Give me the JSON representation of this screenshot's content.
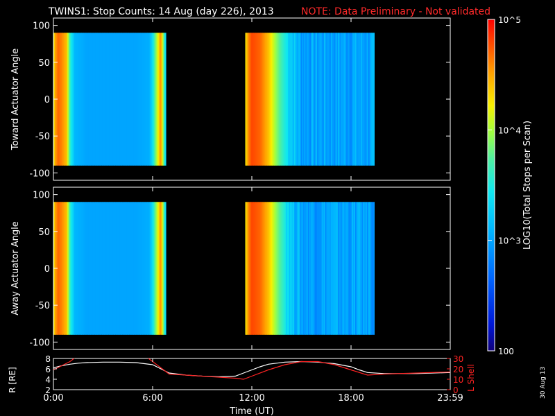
{
  "title": {
    "main": "TWINS1: Stop Counts: 14 Aug (day 226), 2013",
    "note": "NOTE: Data Preliminary - Not validated",
    "note_color": "#ff2a2a"
  },
  "stamp": "30 Aug 13",
  "chart_data": [
    {
      "type": "heatmap",
      "panel": "toward",
      "ylabel": "Toward Actuator Angle",
      "ylim": [
        -110,
        110
      ],
      "yticks": [
        "100",
        "50",
        "0",
        "-50",
        "-100"
      ],
      "ytick_values": [
        100,
        50,
        0,
        -50,
        -100
      ],
      "x_range_hours": [
        0,
        24
      ],
      "angle_range": [
        -90,
        90
      ],
      "data_intervals_hours": [
        [
          0,
          6.8
        ],
        [
          11.6,
          19.4
        ]
      ],
      "value_scale": "log10",
      "profile_hours": [
        0.0,
        0.1,
        0.3,
        0.5,
        0.8,
        1.0,
        1.3,
        2.0,
        3.0,
        4.0,
        5.0,
        5.8,
        6.0,
        6.2,
        6.5,
        6.8,
        11.6,
        11.8,
        12.0,
        12.5,
        13.0,
        13.5,
        14.0,
        14.5,
        15.0,
        16.0,
        17.0,
        18.0,
        19.4
      ],
      "profile_log_counts": [
        4.1,
        4.5,
        4.7,
        4.6,
        4.4,
        3.6,
        3.1,
        3.0,
        3.0,
        3.0,
        3.0,
        3.05,
        3.4,
        3.9,
        4.6,
        3.2,
        4.2,
        4.6,
        4.8,
        4.7,
        4.4,
        3.9,
        3.5,
        3.2,
        3.0,
        3.0,
        3.0,
        3.0,
        3.0
      ]
    },
    {
      "type": "heatmap",
      "panel": "away",
      "ylabel": "Away Actuator Angle",
      "ylim": [
        -110,
        110
      ],
      "yticks": [
        "100",
        "50",
        "0",
        "-50",
        "-100"
      ],
      "ytick_values": [
        100,
        50,
        0,
        -50,
        -100
      ],
      "x_range_hours": [
        0,
        24
      ],
      "angle_range": [
        -90,
        90
      ],
      "data_intervals_hours": [
        [
          0,
          6.8
        ],
        [
          11.6,
          19.4
        ]
      ],
      "value_scale": "log10",
      "profile_hours": [
        0.0,
        0.1,
        0.3,
        0.5,
        0.8,
        1.0,
        1.3,
        2.0,
        3.0,
        4.0,
        5.0,
        5.8,
        6.0,
        6.2,
        6.5,
        6.8,
        11.6,
        11.8,
        12.0,
        12.5,
        13.0,
        13.5,
        14.0,
        14.5,
        15.0,
        16.0,
        17.0,
        18.0,
        19.4
      ],
      "profile_log_counts": [
        4.1,
        4.5,
        4.7,
        4.6,
        4.4,
        3.6,
        3.1,
        3.0,
        3.0,
        3.0,
        3.0,
        3.05,
        3.4,
        3.9,
        4.6,
        3.2,
        4.2,
        4.6,
        4.8,
        4.7,
        4.4,
        3.9,
        3.5,
        3.2,
        3.0,
        3.0,
        3.0,
        3.0,
        3.0
      ]
    },
    {
      "type": "line",
      "panel": "orbit",
      "xlabel": "Time (UT)",
      "xlim": [
        0,
        24
      ],
      "xtick_labels": [
        "0:00",
        "6:00",
        "12:00",
        "18:00",
        "23:59"
      ],
      "xtick_values": [
        0,
        6,
        12,
        18,
        24
      ],
      "ylabel_left": "R [RE]",
      "ylabel_right": "L Shell",
      "ylim_left": [
        2,
        8
      ],
      "yticks_left": [
        "8",
        "6",
        "4",
        "2"
      ],
      "ytick_values_left": [
        8,
        6,
        4,
        2
      ],
      "ylim_right": [
        0,
        30
      ],
      "yticks_right": [
        "30",
        "20",
        "10",
        "0"
      ],
      "ytick_values_right": [
        30,
        20,
        10,
        0
      ],
      "series": [
        {
          "axis": "left",
          "color": "#ffffff",
          "x": [
            0,
            0.5,
            1,
            1.5,
            2,
            3,
            4,
            5,
            6,
            6.5,
            7,
            8,
            9,
            10,
            11,
            11.5,
            12,
            12.5,
            13,
            14,
            15,
            16,
            17,
            18,
            18.5,
            19,
            20,
            22,
            24
          ],
          "y": [
            6.2,
            6.6,
            6.9,
            7.1,
            7.2,
            7.3,
            7.3,
            7.2,
            6.8,
            6.0,
            5.2,
            4.8,
            4.6,
            4.5,
            4.6,
            5.2,
            5.8,
            6.4,
            6.9,
            7.3,
            7.4,
            7.3,
            7.0,
            6.4,
            5.8,
            5.3,
            5.1,
            5.1,
            5.3
          ]
        },
        {
          "axis": "right",
          "color": "#ff2222",
          "x": [
            0,
            1,
            1.5,
            5.5,
            6,
            7,
            9,
            11,
            11.5,
            12,
            13,
            14,
            15,
            16,
            17,
            18,
            19,
            20,
            22,
            24
          ],
          "y": [
            19,
            27,
            33,
            33,
            27,
            15,
            13,
            11,
            10,
            13,
            19,
            24,
            27,
            27,
            24,
            19,
            14,
            15,
            16,
            17
          ]
        }
      ]
    },
    {
      "type": "colorbar",
      "label": "LOG10(Total Stops per Scan)",
      "scale": "log10",
      "range": [
        2,
        5
      ],
      "tick_labels": [
        "10^5",
        "10^4",
        "10^3",
        "100"
      ],
      "tick_values": [
        5,
        4,
        3,
        2
      ]
    }
  ]
}
